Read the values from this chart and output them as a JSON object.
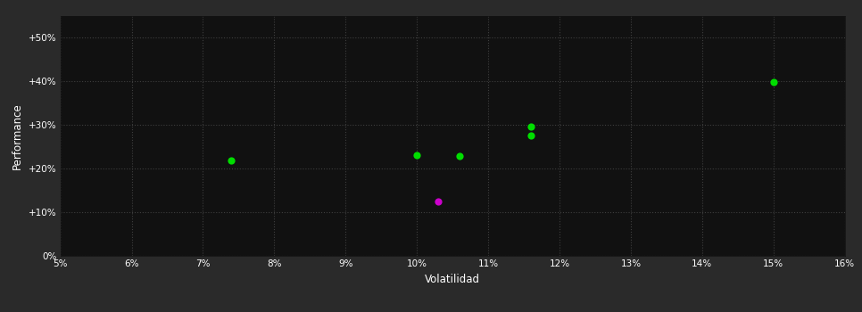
{
  "background_color": "#2a2a2a",
  "plot_bg_color": "#111111",
  "grid_color": "#444444",
  "text_color": "#ffffff",
  "xlabel": "Volatilidad",
  "ylabel": "Performance",
  "xlim": [
    0.05,
    0.16
  ],
  "ylim": [
    0.0,
    0.55
  ],
  "ytick_values": [
    0.0,
    0.1,
    0.2,
    0.3,
    0.4,
    0.5
  ],
  "ytick_labels": [
    "0%",
    "+10%",
    "+20%",
    "+30%",
    "+40%",
    "+50%"
  ],
  "xtick_positions": [
    0.05,
    0.06,
    0.07,
    0.08,
    0.09,
    0.1,
    0.11,
    0.12,
    0.13,
    0.14,
    0.15,
    0.16
  ],
  "xtick_labels": [
    "5%",
    "6%",
    "7%",
    "8%",
    "9%",
    "10%",
    "11%",
    "12%",
    "13%",
    "14%",
    "15%",
    "16%"
  ],
  "green_points_x": [
    0.074,
    0.1,
    0.106,
    0.116,
    0.116,
    0.15
  ],
  "green_points_y": [
    0.218,
    0.23,
    0.228,
    0.295,
    0.276,
    0.398
  ],
  "magenta_points_x": [
    0.103
  ],
  "magenta_points_y": [
    0.125
  ],
  "point_size": 35,
  "green_color": "#00dd00",
  "magenta_color": "#cc00cc"
}
